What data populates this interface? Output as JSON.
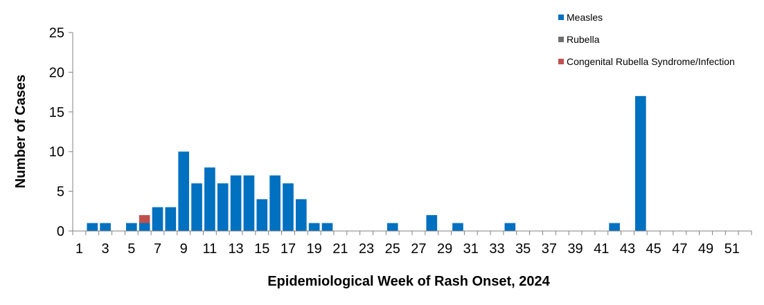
{
  "chart_data": {
    "type": "bar",
    "xlabel": "Epidemiological Week of Rash Onset, 2024",
    "ylabel": "Number of Cases",
    "ylim": [
      0,
      25
    ],
    "yticks": [
      0,
      5,
      10,
      15,
      20,
      25
    ],
    "x": [
      1,
      2,
      3,
      4,
      5,
      6,
      7,
      8,
      9,
      10,
      11,
      12,
      13,
      14,
      15,
      16,
      17,
      18,
      19,
      20,
      21,
      22,
      23,
      24,
      25,
      26,
      27,
      28,
      29,
      30,
      31,
      32,
      33,
      34,
      35,
      36,
      37,
      38,
      39,
      40,
      41,
      42,
      43,
      44,
      45,
      46,
      47,
      48,
      49,
      50,
      51,
      52
    ],
    "xtick_labels": [
      "1",
      "3",
      "5",
      "7",
      "9",
      "11",
      "13",
      "15",
      "17",
      "19",
      "21",
      "23",
      "25",
      "27",
      "29",
      "31",
      "33",
      "35",
      "37",
      "39",
      "41",
      "43",
      "45",
      "47",
      "49",
      "51"
    ],
    "grid": false,
    "legend_position": "top-right",
    "stacked": true,
    "series": [
      {
        "name": "Measles",
        "color": "#0070C0",
        "values": [
          0,
          1,
          1,
          0,
          1,
          1,
          3,
          3,
          10,
          6,
          8,
          6,
          7,
          7,
          4,
          7,
          6,
          4,
          1,
          1,
          0,
          0,
          0,
          0,
          1,
          0,
          0,
          2,
          0,
          1,
          0,
          0,
          0,
          1,
          0,
          0,
          0,
          0,
          0,
          0,
          0,
          1,
          0,
          17,
          0,
          0,
          0,
          0,
          0,
          0,
          0,
          0
        ]
      },
      {
        "name": "Rubella",
        "color": "#6E6E6E",
        "values": [
          0,
          0,
          0,
          0,
          0,
          0,
          0,
          0,
          0,
          0,
          0,
          0,
          0,
          0,
          0,
          0,
          0,
          0,
          0,
          0,
          0,
          0,
          0,
          0,
          0,
          0,
          0,
          0,
          0,
          0,
          0,
          0,
          0,
          0,
          0,
          0,
          0,
          0,
          0,
          0,
          0,
          0,
          0,
          0,
          0,
          0,
          0,
          0,
          0,
          0,
          0,
          0
        ]
      },
      {
        "name": "Congenital Rubella Syndrome/Infection",
        "color": "#C0504D",
        "values": [
          0,
          0,
          0,
          0,
          0,
          1,
          0,
          0,
          0,
          0,
          0,
          0,
          0,
          0,
          0,
          0,
          0,
          0,
          0,
          0,
          0,
          0,
          0,
          0,
          0,
          0,
          0,
          0,
          0,
          0,
          0,
          0,
          0,
          0,
          0,
          0,
          0,
          0,
          0,
          0,
          0,
          0,
          0,
          0,
          0,
          0,
          0,
          0,
          0,
          0,
          0,
          0
        ]
      }
    ]
  }
}
